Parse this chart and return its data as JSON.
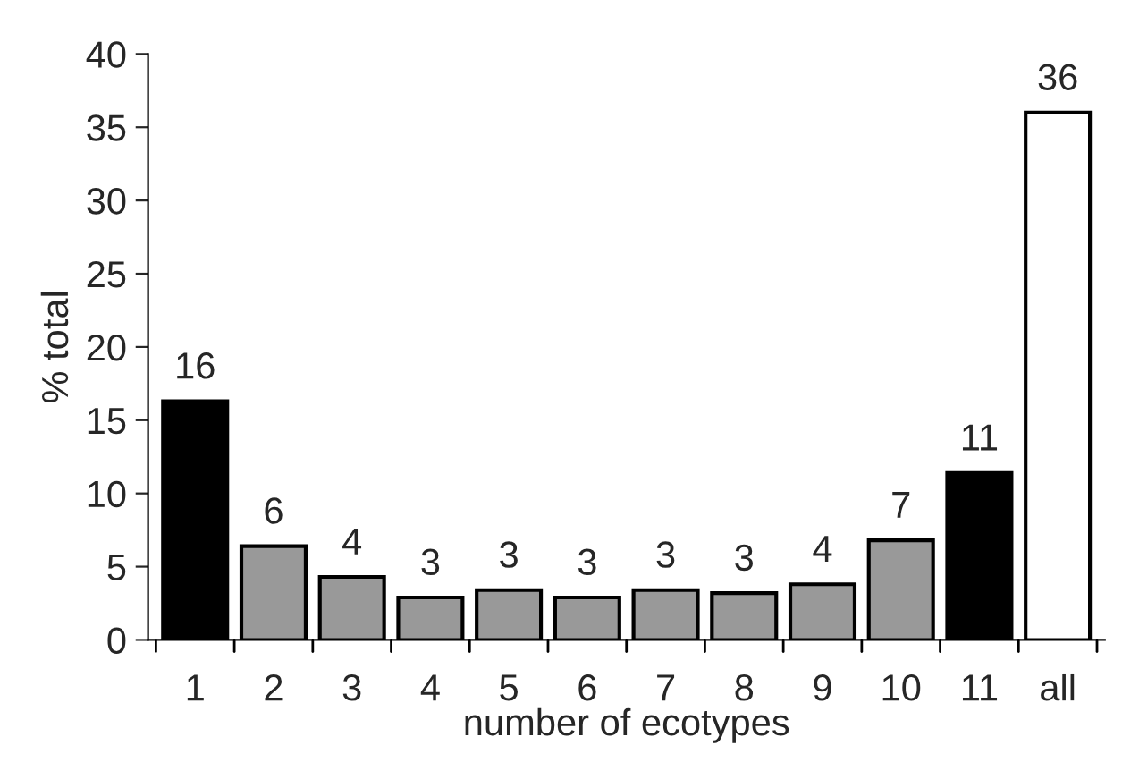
{
  "chart_data": {
    "type": "bar",
    "xlabel": "number of ecotypes",
    "ylabel": "% total",
    "categories": [
      "1",
      "2",
      "3",
      "4",
      "5",
      "6",
      "7",
      "8",
      "9",
      "10",
      "11",
      "all"
    ],
    "values": [
      16.3,
      6.4,
      4.3,
      2.9,
      3.4,
      2.9,
      3.4,
      3.2,
      3.8,
      6.8,
      11.4,
      36
    ],
    "colors": [
      "#000000",
      "#999999",
      "#999999",
      "#999999",
      "#999999",
      "#999999",
      "#999999",
      "#999999",
      "#999999",
      "#999999",
      "#000000",
      "#ffffff"
    ],
    "value_labels": [
      "16",
      "6",
      "4",
      "3",
      "3",
      "3",
      "3",
      "3",
      "4",
      "7",
      "11",
      "36"
    ],
    "ylim": [
      0,
      40
    ],
    "yticks": [
      0,
      5,
      10,
      15,
      20,
      25,
      30,
      35,
      40
    ],
    "grid": false
  }
}
